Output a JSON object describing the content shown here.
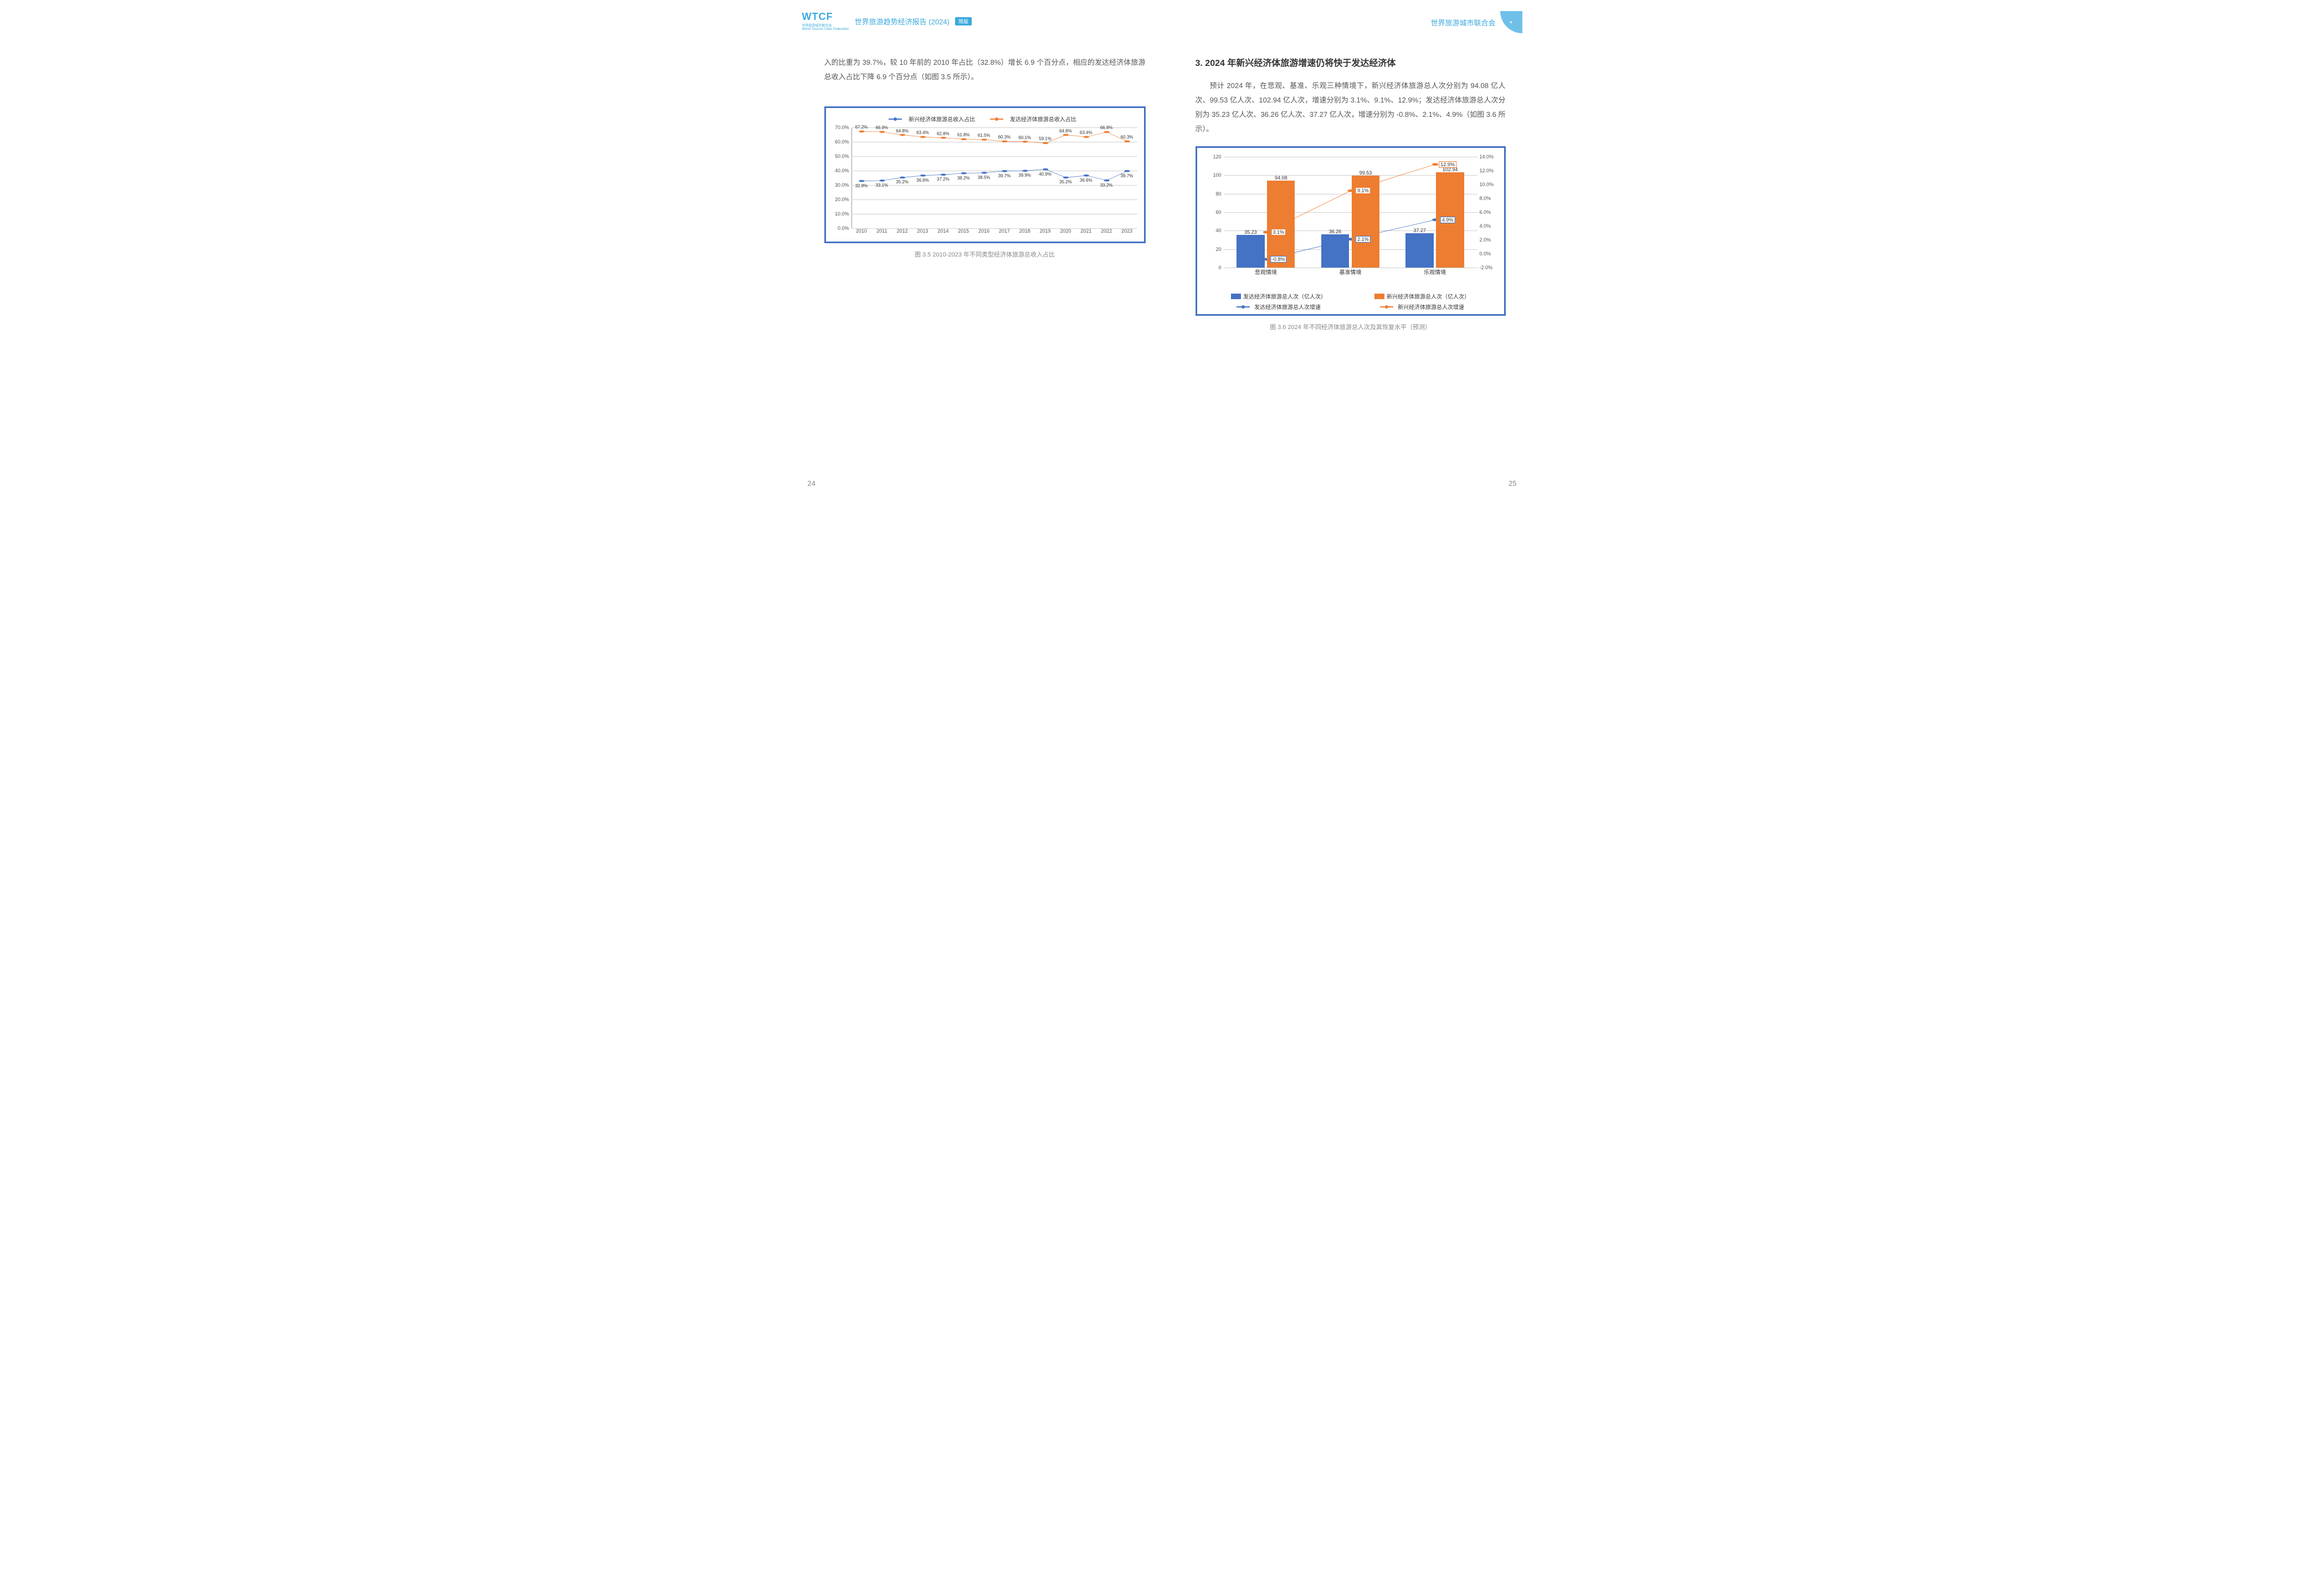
{
  "header": {
    "logo_main": "WTCF",
    "logo_sub": "World Tourism Cities Federation",
    "logo_cn": "世界旅游城市联合会",
    "doc_title": "世界旅游趋势经济报告 (2024)",
    "badge": "简版",
    "org_name": "世界旅游城市联合会"
  },
  "left": {
    "para1": "入的比重为 39.7%，较 10 年前的 2010 年占比（32.8%）增长 6.9 个百分点，相应的发达经济体旅游总收入占比下降 6.9 个百分点（如图 3.5 所示）。",
    "chart": {
      "legend": {
        "s1": "新兴经济体旅游总收入占比",
        "s2": "发达经济体旅游总收入占比"
      },
      "years": [
        "2010",
        "2011",
        "2012",
        "2013",
        "2014",
        "2015",
        "2016",
        "2017",
        "2018",
        "2019",
        "2020",
        "2021",
        "2022",
        "2023"
      ],
      "emerging": [
        32.8,
        33.1,
        35.2,
        36.6,
        37.2,
        38.2,
        38.5,
        39.7,
        39.9,
        40.9,
        35.2,
        36.6,
        33.2,
        39.7
      ],
      "developed": [
        67.2,
        66.9,
        64.8,
        63.4,
        62.8,
        61.8,
        61.5,
        60.3,
        60.1,
        59.1,
        64.8,
        63.4,
        66.8,
        60.3
      ],
      "ylim": [
        0,
        70
      ],
      "ystep": 10,
      "colors": {
        "emerging": "#4472c4",
        "developed": "#ed7d31",
        "grid": "#d0d0d0",
        "border": "#4472c4"
      },
      "caption": "图 3.5 2010-2023 年不同类型经济体旅游总收入占比"
    },
    "page_num": "24"
  },
  "right": {
    "title": "3. 2024 年新兴经济体旅游增速仍将快于发达经济体",
    "para1": "预计 2024 年，在悲观、基准、乐观三种情境下，新兴经济体旅游总人次分别为 94.08 亿人次、99.53 亿人次、102.94 亿人次，增速分别为 3.1%、9.1%、12.9%；发达经济体旅游总人次分别为 35.23 亿人次、36.26 亿人次、37.27 亿人次，增速分别为 -0.8%、2.1%、4.9%（如图 3.6 所示）。",
    "chart": {
      "categories": [
        "悲观情境",
        "基准情境",
        "乐观情境"
      ],
      "bars": {
        "developed": {
          "values": [
            35.23,
            36.26,
            37.27
          ],
          "color": "#4472c4"
        },
        "emerging": {
          "values": [
            94.08,
            99.53,
            102.94
          ],
          "color": "#ed7d31"
        }
      },
      "lines": {
        "developed_growth": {
          "values": [
            -0.8,
            2.1,
            4.9
          ],
          "color": "#4472c4"
        },
        "emerging_growth": {
          "values": [
            3.1,
            9.1,
            12.9
          ],
          "color": "#ed7d31"
        }
      },
      "yleft": {
        "min": 0,
        "max": 120,
        "step": 20
      },
      "yright": {
        "min": -2,
        "max": 14,
        "step": 2
      },
      "bar_width_pct": 11,
      "legend": {
        "a": "发达经济体旅游总人次（亿人次）",
        "b": "新兴经济体旅游总人次（亿人次）",
        "c": "发达经济体旅游总人次增速",
        "d": "新兴经济体旅游总人次增速"
      },
      "caption": "图 3.6 2024 年不同经济体旅游总人次及其恢复水平（预测）"
    },
    "page_num": "25"
  }
}
